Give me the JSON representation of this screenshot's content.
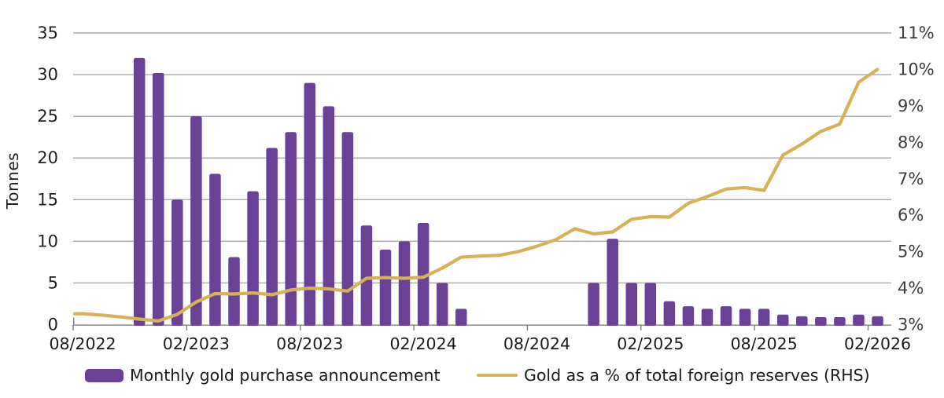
{
  "colors": {
    "bar_purple": "#6a4197",
    "line_gold": "#d7b155",
    "gridline": "#a6a6a6",
    "axis_line": "#7f7f7f",
    "left_tick_text": "#1f1f1f",
    "right_tick_text": "#3d3d3d",
    "x_tick_text": "#1a1a1a",
    "background": "#ffffff"
  },
  "chart_data": {
    "type": "bar+line",
    "title": "",
    "grid": "horizontal",
    "legend_position": "bottom",
    "categories": [
      "08/2022",
      "09/2022",
      "10/2022",
      "11/2022",
      "12/2022",
      "01/2023",
      "02/2023",
      "03/2023",
      "04/2023",
      "05/2023",
      "06/2023",
      "07/2023",
      "08/2023",
      "09/2023",
      "10/2023",
      "11/2023",
      "12/2023",
      "01/2024",
      "02/2024",
      "03/2024",
      "04/2024",
      "05/2024",
      "06/2024",
      "07/2024",
      "08/2024",
      "09/2024",
      "10/2024",
      "11/2024",
      "12/2024",
      "01/2025",
      "02/2025",
      "03/2025",
      "04/2025",
      "05/2025",
      "06/2025",
      "07/2025",
      "08/2025",
      "09/2025",
      "10/2025",
      "11/2025",
      "12/2025",
      "01/2026",
      "02/2026"
    ],
    "x_tick_labels": [
      "08/2022",
      "02/2023",
      "08/2023",
      "02/2024",
      "08/2024",
      "02/2025",
      "08/2025",
      "02/2026"
    ],
    "left_axis": {
      "title": "Tonnes",
      "min": 0,
      "max": 35,
      "step": 5,
      "tick_labels": [
        "0",
        "5",
        "10",
        "15",
        "20",
        "25",
        "30",
        "35"
      ]
    },
    "right_axis": {
      "title": "",
      "min": 3,
      "max": 11,
      "step": 1,
      "tick_labels": [
        "3%",
        "4%",
        "5%",
        "6%",
        "7%",
        "8%",
        "9%",
        "10%",
        "11%"
      ]
    },
    "series": [
      {
        "name": "Monthly gold purchase announcement",
        "type": "bar",
        "axis": "left",
        "unit": "tonnes",
        "values": [
          null,
          null,
          null,
          32,
          30.2,
          15,
          25,
          18.1,
          8.1,
          16,
          21.2,
          23.1,
          29,
          26.2,
          23.1,
          11.9,
          9,
          10,
          12.2,
          5,
          1.9,
          null,
          null,
          null,
          null,
          null,
          null,
          5,
          10.3,
          5,
          5,
          2.8,
          2.2,
          1.9,
          2.2,
          1.9,
          1.9,
          1.2,
          1,
          0.9,
          0.9,
          1.2,
          1
        ]
      },
      {
        "name": "Gold as a % of total foreign reserves (RHS)",
        "type": "line",
        "axis": "right",
        "unit": "%",
        "values": [
          3.3,
          3.26,
          3.21,
          3.15,
          3.1,
          3.28,
          3.62,
          3.85,
          3.84,
          3.87,
          3.82,
          3.95,
          4.0,
          3.98,
          3.92,
          4.27,
          4.29,
          4.27,
          4.3,
          4.55,
          4.85,
          4.88,
          4.9,
          5.0,
          5.15,
          5.33,
          5.63,
          5.49,
          5.54,
          5.89,
          5.96,
          5.95,
          6.33,
          6.51,
          6.72,
          6.76,
          6.68,
          7.65,
          7.95,
          8.3,
          8.5,
          9.65,
          10.0
        ]
      }
    ]
  }
}
